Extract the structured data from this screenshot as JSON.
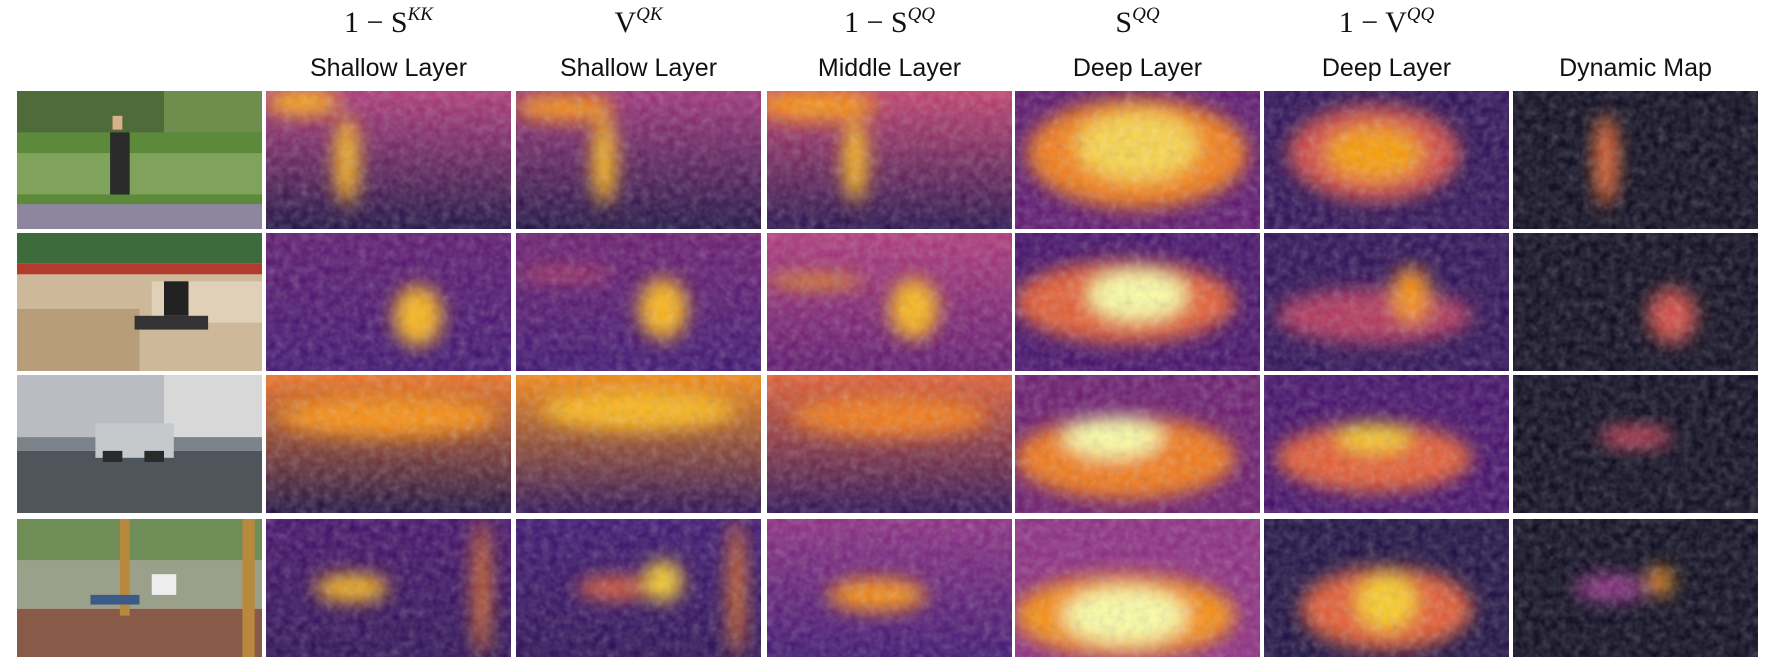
{
  "columns": [
    {
      "math": {
        "base": "1 − S",
        "sup": "KK"
      },
      "label": "Shallow Layer"
    },
    {
      "math": {
        "base": "V",
        "sup": "QK"
      },
      "label": "Shallow Layer"
    },
    {
      "math": {
        "base": "1 − S",
        "sup": "QQ"
      },
      "label": "Middle Layer"
    },
    {
      "math": {
        "base": "S",
        "sup": "QQ"
      },
      "label": "Deep Layer"
    },
    {
      "math": {
        "base": "1 − V",
        "sup": "QQ"
      },
      "label": "Deep Layer"
    },
    {
      "label": "Dynamic Map"
    }
  ]
}
